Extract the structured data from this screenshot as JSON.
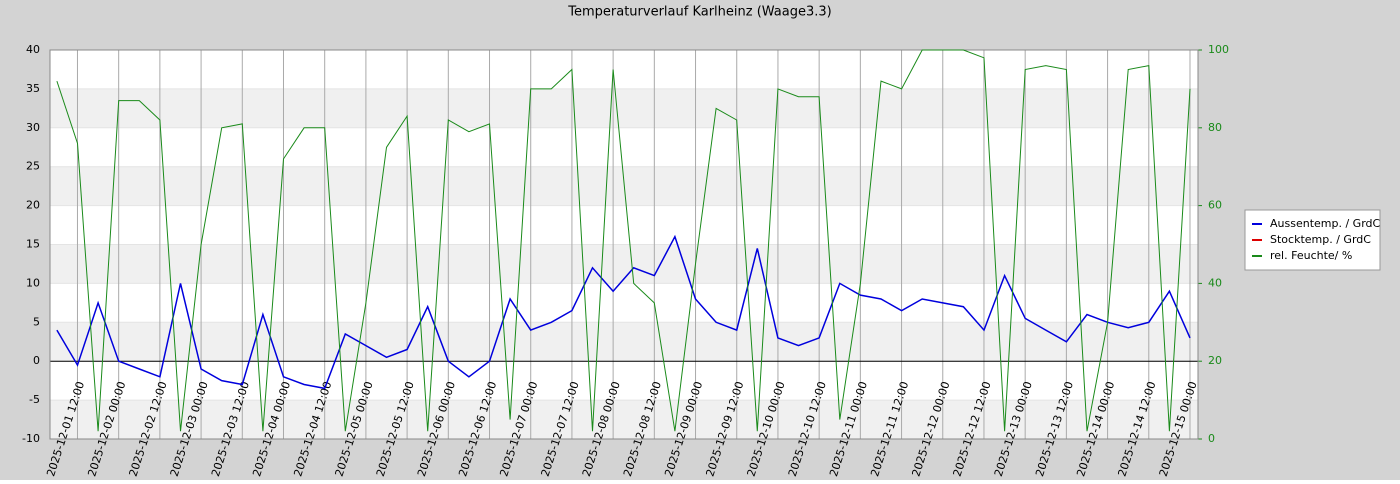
{
  "chart_data": {
    "type": "line",
    "title": "Temperaturverlauf Karlheinz (Waage3.3)",
    "x": [
      "2025-12-01 06:00",
      "2025-12-01 12:00",
      "2025-12-01 18:00",
      "2025-12-02 00:00",
      "2025-12-02 06:00",
      "2025-12-02 12:00",
      "2025-12-02 18:00",
      "2025-12-03 00:00",
      "2025-12-03 06:00",
      "2025-12-03 12:00",
      "2025-12-03 18:00",
      "2025-12-04 00:00",
      "2025-12-04 06:00",
      "2025-12-04 12:00",
      "2025-12-04 18:00",
      "2025-12-05 00:00",
      "2025-12-05 06:00",
      "2025-12-05 12:00",
      "2025-12-05 18:00",
      "2025-12-06 00:00",
      "2025-12-06 06:00",
      "2025-12-06 12:00",
      "2025-12-06 18:00",
      "2025-12-07 00:00",
      "2025-12-07 06:00",
      "2025-12-07 12:00",
      "2025-12-07 18:00",
      "2025-12-08 00:00",
      "2025-12-08 06:00",
      "2025-12-08 12:00",
      "2025-12-08 18:00",
      "2025-12-09 00:00",
      "2025-12-09 06:00",
      "2025-12-09 12:00",
      "2025-12-09 18:00",
      "2025-12-10 00:00",
      "2025-12-10 06:00",
      "2025-12-10 12:00",
      "2025-12-10 18:00",
      "2025-12-11 00:00",
      "2025-12-11 06:00",
      "2025-12-11 12:00",
      "2025-12-11 18:00",
      "2025-12-12 00:00",
      "2025-12-12 06:00",
      "2025-12-12 12:00",
      "2025-12-12 18:00",
      "2025-12-13 00:00",
      "2025-12-13 06:00",
      "2025-12-13 12:00",
      "2025-12-13 18:00",
      "2025-12-14 00:00",
      "2025-12-14 06:00",
      "2025-12-14 12:00",
      "2025-12-14 18:00",
      "2025-12-15 00:00"
    ],
    "series": [
      {
        "name": "Aussentemp.  / GrdC",
        "color": "#0000dd",
        "values": [
          4,
          -0.5,
          7.5,
          0,
          -1,
          -2,
          10,
          -1,
          -2.5,
          -3,
          6,
          -2,
          -3,
          -3.5,
          3.5,
          2,
          0.5,
          1.5,
          7,
          0,
          -2,
          0,
          8,
          4,
          5,
          6.5,
          12,
          9,
          12,
          11,
          16,
          8,
          5,
          4,
          14.5,
          3,
          2,
          3,
          10,
          8.5,
          8,
          6.5,
          8,
          7.5,
          7,
          4,
          11,
          5.5,
          4,
          2.5,
          6,
          5,
          4.3,
          5,
          9,
          3
        ]
      },
      {
        "name": "Stocktemp.  / GrdC",
        "color": "#dd0000",
        "values": [
          null,
          null,
          null,
          null,
          null,
          null,
          null,
          null,
          null,
          null,
          null,
          null,
          null,
          null,
          null,
          null,
          null,
          null,
          null,
          null,
          null,
          null,
          null,
          null,
          null,
          null,
          null,
          null,
          null,
          null,
          null,
          null,
          null,
          null,
          null,
          null,
          null,
          null,
          null,
          null,
          null,
          null,
          null,
          null,
          null,
          null,
          null,
          null,
          null,
          null,
          null,
          null,
          null,
          null,
          null,
          null
        ]
      },
      {
        "name": "rel. Feuchte/ %",
        "color": "#1a8a1a",
        "axis": "y2",
        "values": [
          92,
          76,
          2,
          87,
          87,
          82,
          2,
          50,
          80,
          81,
          2,
          72,
          80,
          80,
          2,
          35,
          75,
          83,
          2,
          82,
          79,
          81,
          5,
          90,
          90,
          95,
          2,
          95,
          40,
          35,
          2,
          45,
          85,
          82,
          2,
          90,
          88,
          88,
          5,
          40,
          92,
          90,
          100,
          100,
          100,
          98,
          2,
          95,
          96,
          95,
          2,
          30,
          95,
          96,
          2,
          90
        ]
      }
    ],
    "xlim": [
      "2025-12-01 04:00",
      "2025-12-15 02:20"
    ],
    "xticks": [
      "2025-12-01 12:00",
      "2025-12-02 00:00",
      "2025-12-02 12:00",
      "2025-12-03 00:00",
      "2025-12-03 12:00",
      "2025-12-04 00:00",
      "2025-12-04 12:00",
      "2025-12-05 00:00",
      "2025-12-05 12:00",
      "2025-12-06 00:00",
      "2025-12-06 12:00",
      "2025-12-07 00:00",
      "2025-12-07 12:00",
      "2025-12-08 00:00",
      "2025-12-08 12:00",
      "2025-12-09 00:00",
      "2025-12-09 12:00",
      "2025-12-10 00:00",
      "2025-12-10 12:00",
      "2025-12-11 00:00",
      "2025-12-11 12:00",
      "2025-12-12 00:00",
      "2025-12-12 12:00",
      "2025-12-13 00:00",
      "2025-12-13 12:00",
      "2025-12-14 00:00",
      "2025-12-14 12:00",
      "2025-12-15 00:00"
    ],
    "ylim": [
      -10,
      40
    ],
    "yticks": [
      -10,
      -5,
      0,
      5,
      10,
      15,
      20,
      25,
      30,
      35,
      40
    ],
    "y2lim": [
      0,
      100
    ],
    "y2ticks": [
      0,
      20,
      40,
      60,
      80,
      100
    ],
    "legend": "right"
  }
}
